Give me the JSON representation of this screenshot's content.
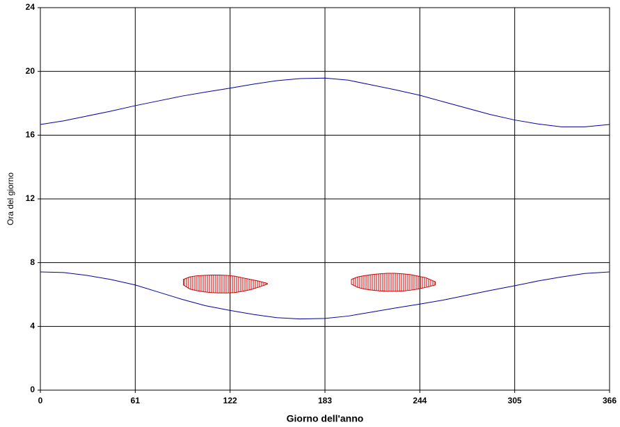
{
  "chart_data": {
    "type": "line",
    "xlabel": "Giorno dell'anno",
    "ylabel": "Ora del giorno",
    "xlim": [
      0,
      366
    ],
    "xticks": [
      0,
      61,
      122,
      183,
      244,
      305,
      366
    ],
    "ylim": [
      0,
      24
    ],
    "yticks": [
      0,
      4,
      8,
      12,
      16,
      20,
      24
    ],
    "grid": true,
    "x": [
      0,
      15,
      30,
      45,
      61,
      76,
      91,
      106,
      122,
      137,
      152,
      167,
      183,
      198,
      213,
      228,
      244,
      259,
      274,
      289,
      305,
      320,
      335,
      350,
      366
    ],
    "series": [
      {
        "color": "#0000a0",
        "values": [
          16.67,
          16.9,
          17.2,
          17.5,
          17.85,
          18.15,
          18.45,
          18.7,
          18.95,
          19.2,
          19.42,
          19.55,
          19.58,
          19.45,
          19.15,
          18.85,
          18.5,
          18.1,
          17.7,
          17.3,
          16.95,
          16.7,
          16.52,
          16.52,
          16.67
        ]
      },
      {
        "color": "#0000a0",
        "values": [
          7.42,
          7.38,
          7.2,
          6.95,
          6.6,
          6.15,
          5.7,
          5.3,
          5.0,
          4.75,
          4.55,
          4.47,
          4.5,
          4.65,
          4.9,
          5.15,
          5.4,
          5.65,
          5.95,
          6.25,
          6.55,
          6.85,
          7.1,
          7.32,
          7.42
        ]
      }
    ],
    "shaded_regions": [
      {
        "color": "#cc0000",
        "x": [
          92,
          96,
          100,
          105,
          110,
          115,
          120,
          125,
          130,
          135,
          140,
          146
        ],
        "upper": [
          6.95,
          7.1,
          7.17,
          7.2,
          7.22,
          7.22,
          7.2,
          7.15,
          7.05,
          6.95,
          6.85,
          6.7
        ],
        "lower": [
          6.6,
          6.35,
          6.25,
          6.17,
          6.12,
          6.1,
          6.1,
          6.12,
          6.2,
          6.3,
          6.45,
          6.65
        ]
      },
      {
        "color": "#cc0000",
        "x": [
          200,
          204,
          208,
          213,
          218,
          223,
          228,
          233,
          238,
          243,
          248,
          254
        ],
        "upper": [
          6.95,
          7.1,
          7.18,
          7.25,
          7.3,
          7.33,
          7.33,
          7.3,
          7.25,
          7.15,
          7.05,
          6.8
        ],
        "lower": [
          6.65,
          6.45,
          6.35,
          6.28,
          6.23,
          6.2,
          6.2,
          6.22,
          6.27,
          6.35,
          6.45,
          6.6
        ]
      }
    ]
  }
}
